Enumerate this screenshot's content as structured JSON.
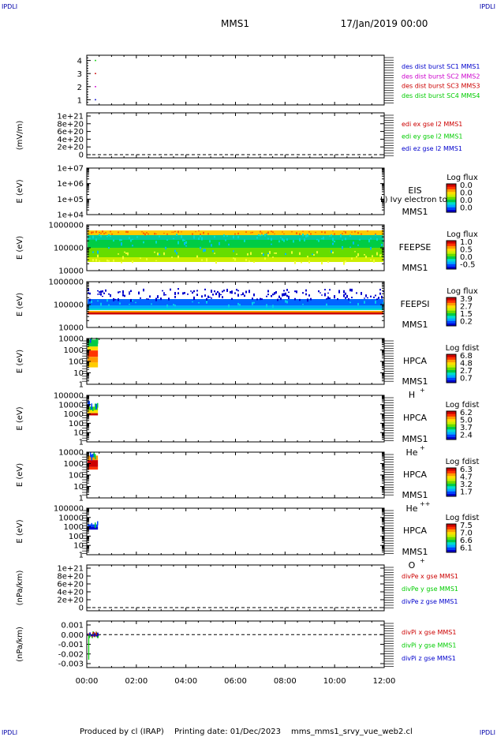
{
  "corner_label": "IPDLI",
  "header": {
    "mission": "MMS1",
    "datetime": "17/Jan/2019 00:00"
  },
  "footer": {
    "produced": "Produced by cl (IRAP)",
    "printing": "Printing date: 01/Dec/2023",
    "script": "mms_mms1_srvy_vue_web2.cl"
  },
  "colors": {
    "red": "#cc0000",
    "green": "#00cc00",
    "blue": "#0000cc",
    "magenta": "#cc00cc",
    "dashed": "#000000"
  },
  "chart_data": [
    {
      "type": "scatter",
      "id": "burst",
      "ylim": [
        0.6,
        4.4
      ],
      "yticks": [
        "1",
        "2",
        "3",
        "4"
      ],
      "series": [
        {
          "name": "des dist burst SC1 MMS1",
          "color": "#0000cc",
          "x": [
            0.35
          ],
          "y": [
            1
          ]
        },
        {
          "name": "des dist burst SC2 MMS2",
          "color": "#cc00cc",
          "x": [
            0.35
          ],
          "y": [
            2
          ]
        },
        {
          "name": "des dist burst SC3 MMS3",
          "color": "#cc0000",
          "x": [
            0.35
          ],
          "y": [
            3
          ]
        },
        {
          "name": "des dist burst SC4 MMS4",
          "color": "#00cc00",
          "x": [
            0.35
          ],
          "y": [
            4
          ]
        }
      ]
    },
    {
      "type": "line",
      "id": "edi",
      "ylabel": "(mV/m)",
      "yticks": [
        "0",
        "2e+20",
        "4e+20",
        "6e+20",
        "8e+20",
        "1e+21"
      ],
      "series": [
        {
          "name": "edi ex gse l2 MMS1",
          "color": "#cc0000"
        },
        {
          "name": "edi ey gse l2 MMS1",
          "color": "#00cc00"
        },
        {
          "name": "edi ez gse l2 MMS1",
          "color": "#0000cc"
        }
      ]
    },
    {
      "type": "heatmap",
      "id": "eis",
      "ylabel": "E (eV)",
      "yticks": [
        "1e+04",
        "1e+05",
        "1e+06",
        "1e+07"
      ],
      "instrument": "EIS",
      "spacecraft": "MMS1",
      "species": "",
      "overlay": "L) Ivy electron to",
      "colorbar": {
        "title": "Log flux",
        "ticks": [
          "0.0",
          "0.0",
          "0.0",
          "0.0"
        ]
      }
    },
    {
      "type": "heatmap",
      "id": "feepse",
      "ylabel": "E (eV)",
      "yticks": [
        "10000",
        "100000",
        "1000000"
      ],
      "instrument": "FEEPSE",
      "spacecraft": "MMS1",
      "species": "",
      "colorbar": {
        "title": "Log flux",
        "ticks": [
          "1.0",
          "0.5",
          "0.0",
          "-0.5"
        ]
      }
    },
    {
      "type": "heatmap",
      "id": "feepsi",
      "ylabel": "E (eV)",
      "yticks": [
        "10000",
        "100000",
        "1000000"
      ],
      "instrument": "FEEPSI",
      "spacecraft": "MMS1",
      "species": "",
      "colorbar": {
        "title": "Log flux",
        "ticks": [
          "3.9",
          "2.7",
          "1.5",
          "0.2"
        ]
      }
    },
    {
      "type": "heatmap",
      "id": "hpca_h",
      "ylabel": "E (eV)",
      "yticks": [
        "1",
        "10",
        "100",
        "1000",
        "10000"
      ],
      "instrument": "HPCA",
      "spacecraft": "MMS1",
      "species": "H",
      "species_sup": "+",
      "colorbar": {
        "title": "Log fdist",
        "ticks": [
          "6.8",
          "4.8",
          "2.7",
          "0.7"
        ]
      }
    },
    {
      "type": "heatmap",
      "id": "hpca_he",
      "ylabel": "E (eV)",
      "yticks": [
        "1",
        "10",
        "100",
        "1000",
        "10000",
        "100000"
      ],
      "instrument": "HPCA",
      "spacecraft": "MMS1",
      "species": "He",
      "species_sup": "+",
      "colorbar": {
        "title": "Log fdist",
        "ticks": [
          "6.2",
          "5.0",
          "3.7",
          "2.4"
        ]
      }
    },
    {
      "type": "heatmap",
      "id": "hpca_he2",
      "ylabel": "E (eV)",
      "yticks": [
        "1",
        "10",
        "100",
        "1000",
        "10000"
      ],
      "instrument": "HPCA",
      "spacecraft": "MMS1",
      "species": "He",
      "species_sup": "++",
      "colorbar": {
        "title": "Log fdist",
        "ticks": [
          "6.3",
          "4.7",
          "3.2",
          "1.7"
        ]
      }
    },
    {
      "type": "heatmap",
      "id": "hpca_o",
      "ylabel": "E (eV)",
      "yticks": [
        "1",
        "10",
        "100",
        "1000",
        "10000",
        "100000"
      ],
      "instrument": "HPCA",
      "spacecraft": "MMS1",
      "species": "O",
      "species_sup": "+",
      "colorbar": {
        "title": "Log fdist",
        "ticks": [
          "7.5",
          "7.0",
          "6.6",
          "6.1"
        ]
      }
    },
    {
      "type": "line",
      "id": "divpe",
      "ylabel": "(nPa/km)",
      "yticks": [
        "0",
        "2e+20",
        "4e+20",
        "6e+20",
        "8e+20",
        "1e+21"
      ],
      "series": [
        {
          "name": "divPe x gse MMS1",
          "color": "#cc0000"
        },
        {
          "name": "divPe y gse MMS1",
          "color": "#00cc00"
        },
        {
          "name": "divPe z gse MMS1",
          "color": "#0000cc"
        }
      ]
    },
    {
      "type": "line",
      "id": "divpi",
      "ylabel": "(nPa/km)",
      "yticks": [
        "-0.003",
        "-0.002",
        "-0.001",
        "0.000",
        "0.001"
      ],
      "series": [
        {
          "name": "divPi x gse MMS1",
          "color": "#cc0000"
        },
        {
          "name": "divPi y gse MMS1",
          "color": "#00cc00"
        },
        {
          "name": "divPi z gse MMS1",
          "color": "#0000cc"
        }
      ]
    }
  ],
  "x_axis": {
    "ticks": [
      "00:00",
      "02:00",
      "04:00",
      "06:00",
      "08:00",
      "10:00",
      "12:00"
    ],
    "range_hours": [
      0,
      12
    ]
  }
}
